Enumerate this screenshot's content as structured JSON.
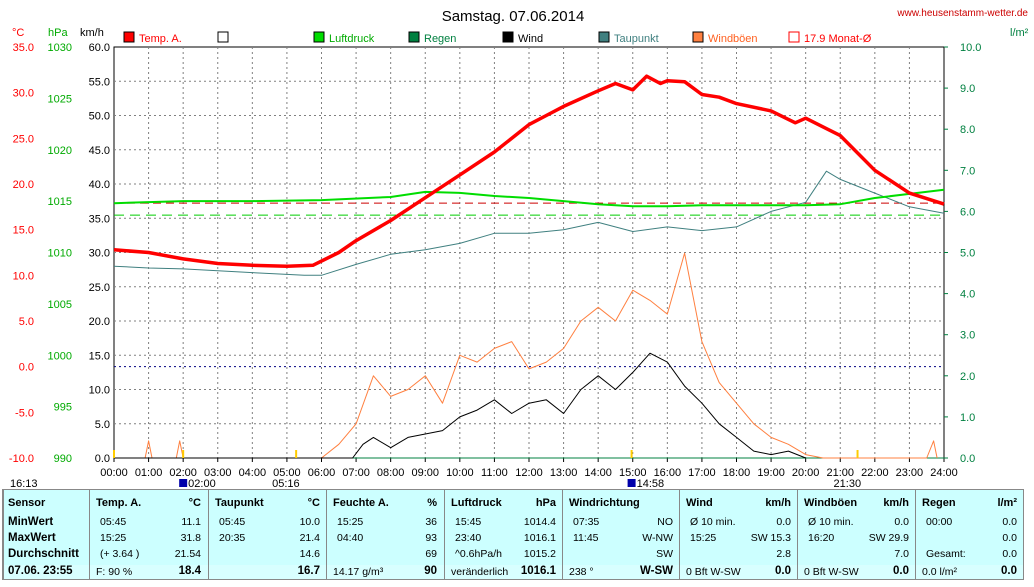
{
  "title": "Samstag. 07.06.2014",
  "site": "www.heusenstamm-wetter.de",
  "units": {
    "celsius": "°C",
    "hpa": "hPa",
    "kmh": "km/h",
    "rain": "l/m²"
  },
  "legend": [
    {
      "label": "Temp. A.",
      "color": "#ff0000"
    },
    {
      "label": "",
      "color": "#ffffff"
    },
    {
      "label": "Luftdruck",
      "color": "#00dd00"
    },
    {
      "label": "Regen",
      "color": "#008040"
    },
    {
      "label": "Wind",
      "color": "#000000"
    },
    {
      "label": "Taupunkt",
      "color": "#408080"
    },
    {
      "label": "Windböen",
      "color": "#ff8040"
    },
    {
      "label": "17.9 Monat-Ø",
      "color": "#ff0000"
    }
  ],
  "chart_data": {
    "type": "line",
    "x_ticks": [
      "00:00",
      "01:00",
      "02:00",
      "03:00",
      "04:00",
      "05:00",
      "06:00",
      "07:00",
      "08:00",
      "09:00",
      "10:00",
      "11:00",
      "12:00",
      "13:00",
      "14:00",
      "15:00",
      "16:00",
      "17:00",
      "18:00",
      "19:00",
      "20:00",
      "21:00",
      "22:00",
      "23:00",
      "24:00"
    ],
    "axes": {
      "celsius": {
        "ticks": [
          "35.0",
          "30.0",
          "25.0",
          "20.0",
          "15.0",
          "10.0",
          "5.0",
          "0.0",
          "-5.0",
          "-10.0"
        ],
        "range": [
          -10,
          35
        ]
      },
      "hpa": {
        "ticks": [
          "1030",
          "1025",
          "1020",
          "1015",
          "1010",
          "1005",
          "1000",
          "995",
          "990"
        ],
        "range": [
          990,
          1030
        ]
      },
      "kmh": {
        "ticks": [
          "60.0",
          "55.0",
          "50.0",
          "45.0",
          "40.0",
          "35.0",
          "30.0",
          "25.0",
          "20.0",
          "15.0",
          "10.0",
          "5.0",
          "0.0"
        ],
        "range": [
          0,
          60
        ]
      },
      "rain": {
        "ticks": [
          "10.0",
          "9.0",
          "8.0",
          "7.0",
          "6.0",
          "5.0",
          "4.0",
          "3.0",
          "2.0",
          "1.0",
          "0.0"
        ],
        "range": [
          0,
          10
        ]
      }
    },
    "reference_lines": {
      "month_avg_temp": 17.9
    },
    "sun_markers": [
      {
        "label": "16:13",
        "x": "00:00"
      },
      {
        "label": "02:00",
        "x": "02:00"
      },
      {
        "label": "05:16",
        "x": "05:16"
      },
      {
        "label": "14:58",
        "x": "14:58"
      },
      {
        "label": "21:30",
        "x": "21:30"
      }
    ],
    "series": [
      {
        "name": "Temp. A.",
        "axis": "celsius",
        "color": "#ff0000",
        "points": [
          [
            0,
            12.8
          ],
          [
            1,
            12.5
          ],
          [
            2,
            11.8
          ],
          [
            3,
            11.3
          ],
          [
            4,
            11.1
          ],
          [
            5,
            11.0
          ],
          [
            5.75,
            11.1
          ],
          [
            6.5,
            12.5
          ],
          [
            7,
            13.8
          ],
          [
            8,
            16.0
          ],
          [
            9,
            18.5
          ],
          [
            10,
            21.0
          ],
          [
            11,
            23.5
          ],
          [
            12,
            26.5
          ],
          [
            12.5,
            27.5
          ],
          [
            13,
            28.5
          ],
          [
            14,
            30.2
          ],
          [
            14.5,
            31.0
          ],
          [
            15,
            30.3
          ],
          [
            15.4,
            31.8
          ],
          [
            15.8,
            31.0
          ],
          [
            16,
            31.3
          ],
          [
            16.5,
            31.2
          ],
          [
            17,
            29.8
          ],
          [
            17.5,
            29.5
          ],
          [
            18,
            28.8
          ],
          [
            19,
            28.0
          ],
          [
            19.7,
            26.7
          ],
          [
            20,
            27.2
          ],
          [
            21,
            25.3
          ],
          [
            22,
            21.5
          ],
          [
            23,
            19.0
          ],
          [
            24,
            17.8
          ]
        ]
      },
      {
        "name": "Taupunkt",
        "axis": "celsius",
        "color": "#408080",
        "points": [
          [
            0,
            11.0
          ],
          [
            1,
            10.8
          ],
          [
            2,
            10.7
          ],
          [
            3,
            10.5
          ],
          [
            4,
            10.3
          ],
          [
            5,
            10.1
          ],
          [
            5.5,
            10.0
          ],
          [
            6,
            10.0
          ],
          [
            7,
            11.2
          ],
          [
            8,
            12.3
          ],
          [
            9,
            12.8
          ],
          [
            10,
            13.5
          ],
          [
            11,
            14.6
          ],
          [
            12,
            14.6
          ],
          [
            13,
            15.0
          ],
          [
            14,
            15.8
          ],
          [
            15,
            14.8
          ],
          [
            16,
            15.3
          ],
          [
            17,
            14.9
          ],
          [
            18,
            15.3
          ],
          [
            19,
            17.0
          ],
          [
            20,
            18.0
          ],
          [
            20.6,
            21.4
          ],
          [
            21,
            20.5
          ],
          [
            22,
            19.0
          ],
          [
            23,
            17.5
          ],
          [
            24,
            16.8
          ]
        ]
      },
      {
        "name": "Luftdruck",
        "axis": "hpa",
        "color": "#00dd00",
        "points": [
          [
            0,
            1014.8
          ],
          [
            2,
            1015.0
          ],
          [
            4,
            1015.0
          ],
          [
            6,
            1015.1
          ],
          [
            8,
            1015.4
          ],
          [
            9,
            1015.9
          ],
          [
            10,
            1015.8
          ],
          [
            11,
            1015.5
          ],
          [
            12,
            1015.3
          ],
          [
            13,
            1015.0
          ],
          [
            14,
            1014.7
          ],
          [
            15,
            1014.5
          ],
          [
            16,
            1014.5
          ],
          [
            17,
            1014.6
          ],
          [
            18,
            1014.6
          ],
          [
            20,
            1014.6
          ],
          [
            21,
            1014.7
          ],
          [
            22,
            1015.3
          ],
          [
            23,
            1015.7
          ],
          [
            24,
            1016.1
          ]
        ]
      },
      {
        "name": "Wind",
        "axis": "kmh",
        "color": "#000000",
        "points": [
          [
            0,
            0
          ],
          [
            6.9,
            0
          ],
          [
            7.2,
            2
          ],
          [
            7.5,
            3
          ],
          [
            8,
            1.5
          ],
          [
            8.5,
            3
          ],
          [
            9,
            3.5
          ],
          [
            9.5,
            4
          ],
          [
            10,
            6
          ],
          [
            10.5,
            7
          ],
          [
            11,
            8.5
          ],
          [
            11.5,
            6.5
          ],
          [
            12,
            8
          ],
          [
            12.5,
            8.5
          ],
          [
            13,
            6.5
          ],
          [
            13.5,
            10
          ],
          [
            14,
            12
          ],
          [
            14.5,
            10
          ],
          [
            15,
            12.5
          ],
          [
            15.5,
            15.3
          ],
          [
            16,
            14
          ],
          [
            16.5,
            10.5
          ],
          [
            17,
            8
          ],
          [
            17.5,
            5
          ],
          [
            18,
            3
          ],
          [
            18.5,
            1
          ],
          [
            19,
            0.5
          ],
          [
            19.5,
            1
          ],
          [
            20,
            0
          ]
        ]
      },
      {
        "name": "Windböen",
        "axis": "kmh",
        "color": "#ff8040",
        "points": [
          [
            0,
            0
          ],
          [
            0.9,
            0
          ],
          [
            1,
            2.5
          ],
          [
            1.1,
            0
          ],
          [
            1.8,
            0
          ],
          [
            1.9,
            2.5
          ],
          [
            2,
            0
          ],
          [
            6,
            0
          ],
          [
            6.5,
            2
          ],
          [
            7,
            5
          ],
          [
            7.5,
            12
          ],
          [
            8,
            9
          ],
          [
            8.5,
            10
          ],
          [
            9,
            12
          ],
          [
            9.5,
            8
          ],
          [
            10,
            15
          ],
          [
            10.5,
            14
          ],
          [
            11,
            16
          ],
          [
            11.5,
            17
          ],
          [
            12,
            13
          ],
          [
            12.5,
            14
          ],
          [
            13,
            16
          ],
          [
            13.5,
            20
          ],
          [
            14,
            22
          ],
          [
            14.5,
            20
          ],
          [
            15,
            24.5
          ],
          [
            15.5,
            23
          ],
          [
            16,
            21
          ],
          [
            16.5,
            29.9
          ],
          [
            17,
            17
          ],
          [
            17.5,
            11
          ],
          [
            18,
            8
          ],
          [
            18.5,
            5
          ],
          [
            19,
            3
          ],
          [
            19.5,
            2
          ],
          [
            20,
            0.5
          ],
          [
            20.5,
            0
          ],
          [
            23.5,
            0
          ],
          [
            23.7,
            2.5
          ],
          [
            23.8,
            0
          ]
        ]
      },
      {
        "name": "Regen",
        "axis": "rain",
        "color": "#008040",
        "points": [
          [
            0,
            0
          ],
          [
            24,
            0
          ]
        ]
      }
    ]
  },
  "table": {
    "sensor": {
      "header": "Sensor",
      "rows": [
        "MinWert",
        "MaxWert",
        "Durchschnitt"
      ],
      "footer": "07.06. 23:55"
    },
    "temp": {
      "header": "Temp. A.",
      "unit": "°C",
      "rows": [
        [
          "05:45",
          "11.1"
        ],
        [
          "15:25",
          "31.8"
        ],
        [
          "(+ 3.64 )",
          "21.54"
        ]
      ],
      "footer": [
        "F: 90 %",
        "18.4"
      ]
    },
    "taupunkt": {
      "header": "Taupunkt",
      "unit": "°C",
      "rows": [
        [
          "05:45",
          "10.0"
        ],
        [
          "20:35",
          "21.4"
        ],
        [
          "",
          "14.6"
        ]
      ],
      "footer": [
        "",
        "16.7"
      ]
    },
    "feuchte": {
      "header": "Feuchte A.",
      "unit": "%",
      "rows": [
        [
          "15:25",
          "36"
        ],
        [
          "04:40",
          "93"
        ],
        [
          "",
          "69"
        ]
      ],
      "footer": [
        "14.17 g/m³",
        "90"
      ]
    },
    "luftdruck": {
      "header": "Luftdruck",
      "unit": "hPa",
      "rows": [
        [
          "15:45",
          "1014.4"
        ],
        [
          "23:40",
          "1016.1"
        ],
        [
          "^0.6hPa/h",
          "1015.2"
        ]
      ],
      "footer": [
        "veränderlich",
        "1016.1"
      ]
    },
    "windrichtung": {
      "header": "Windrichtung",
      "unit": "",
      "rows": [
        [
          "07:35",
          "NO"
        ],
        [
          "11:45",
          "W-NW"
        ],
        [
          "",
          "SW"
        ]
      ],
      "footer": [
        "238 °",
        "W-SW"
      ]
    },
    "wind": {
      "header": "Wind",
      "unit": "km/h",
      "rows": [
        [
          "Ø 10 min.",
          "0.0"
        ],
        [
          "15:25",
          "SW 15.3"
        ],
        [
          "",
          "2.8"
        ]
      ],
      "footer": [
        "0 Bft W-SW",
        "0.0"
      ]
    },
    "windboeen": {
      "header": "Windböen",
      "unit": "km/h",
      "rows": [
        [
          "Ø 10 min.",
          "0.0"
        ],
        [
          "16:20",
          "SW 29.9"
        ],
        [
          "",
          "7.0"
        ]
      ],
      "footer": [
        "0 Bft W-SW",
        "0.0"
      ]
    },
    "regen": {
      "header": "Regen",
      "unit": "l/m²",
      "rows": [
        [
          "00:00",
          "0.0"
        ],
        [
          "",
          "0.0"
        ],
        [
          "Gesamt:",
          "0.0"
        ]
      ],
      "footer": [
        "0.0 l/m²",
        "0.0"
      ]
    }
  }
}
